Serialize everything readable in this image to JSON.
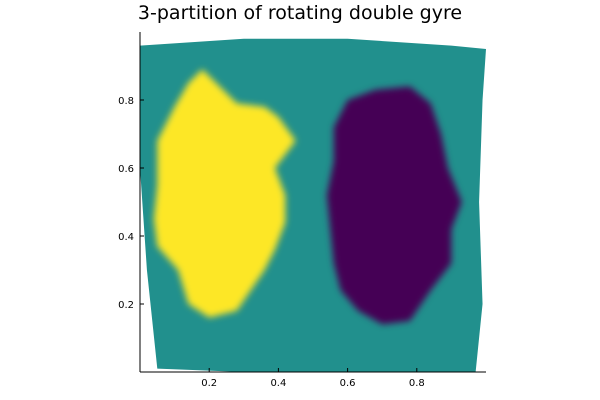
{
  "chart_data": {
    "type": "heatmap",
    "title": "3-partition of rotating double gyre",
    "xlabel": "",
    "ylabel": "",
    "xlim": [
      0.0,
      1.0
    ],
    "ylim": [
      0.0,
      1.0
    ],
    "x_ticks": [
      0.2,
      0.4,
      0.6,
      0.8
    ],
    "y_ticks": [
      0.2,
      0.4,
      0.6,
      0.8
    ],
    "x_tick_labels": [
      "0.2",
      "0.4",
      "0.6",
      "0.8"
    ],
    "y_tick_labels": [
      "0.2",
      "0.4",
      "0.6",
      "0.8"
    ],
    "grid": false,
    "legend": "none",
    "partitions": [
      {
        "color": "#21908d",
        "role": "background",
        "boundary": [
          [
            0.0,
            0.96
          ],
          [
            0.3,
            0.98
          ],
          [
            0.6,
            0.98
          ],
          [
            0.9,
            0.96
          ],
          [
            1.0,
            0.95
          ],
          [
            0.99,
            0.8
          ],
          [
            0.98,
            0.5
          ],
          [
            0.99,
            0.2
          ],
          [
            0.97,
            0.0
          ],
          [
            0.6,
            0.0
          ],
          [
            0.3,
            0.0
          ],
          [
            0.05,
            0.01
          ],
          [
            0.02,
            0.3
          ],
          [
            0.0,
            0.6
          ],
          [
            0.0,
            0.96
          ]
        ]
      },
      {
        "color": "#fde725",
        "role": "left-gyre",
        "center": [
          0.25,
          0.48
        ],
        "boundary": [
          [
            0.18,
            0.89
          ],
          [
            0.22,
            0.85
          ],
          [
            0.28,
            0.79
          ],
          [
            0.36,
            0.78
          ],
          [
            0.4,
            0.75
          ],
          [
            0.45,
            0.68
          ],
          [
            0.39,
            0.6
          ],
          [
            0.42,
            0.52
          ],
          [
            0.42,
            0.44
          ],
          [
            0.39,
            0.36
          ],
          [
            0.36,
            0.3
          ],
          [
            0.32,
            0.24
          ],
          [
            0.28,
            0.18
          ],
          [
            0.2,
            0.16
          ],
          [
            0.14,
            0.2
          ],
          [
            0.11,
            0.3
          ],
          [
            0.05,
            0.37
          ],
          [
            0.04,
            0.45
          ],
          [
            0.05,
            0.55
          ],
          [
            0.05,
            0.68
          ],
          [
            0.1,
            0.78
          ],
          [
            0.14,
            0.85
          ]
        ]
      },
      {
        "color": "#440154",
        "role": "right-gyre",
        "center": [
          0.74,
          0.48
        ],
        "boundary": [
          [
            0.6,
            0.8
          ],
          [
            0.68,
            0.83
          ],
          [
            0.78,
            0.84
          ],
          [
            0.84,
            0.79
          ],
          [
            0.87,
            0.7
          ],
          [
            0.89,
            0.6
          ],
          [
            0.93,
            0.5
          ],
          [
            0.9,
            0.42
          ],
          [
            0.9,
            0.32
          ],
          [
            0.84,
            0.24
          ],
          [
            0.78,
            0.15
          ],
          [
            0.7,
            0.14
          ],
          [
            0.63,
            0.18
          ],
          [
            0.58,
            0.24
          ],
          [
            0.56,
            0.32
          ],
          [
            0.55,
            0.42
          ],
          [
            0.54,
            0.52
          ],
          [
            0.56,
            0.62
          ],
          [
            0.56,
            0.72
          ]
        ]
      }
    ]
  }
}
